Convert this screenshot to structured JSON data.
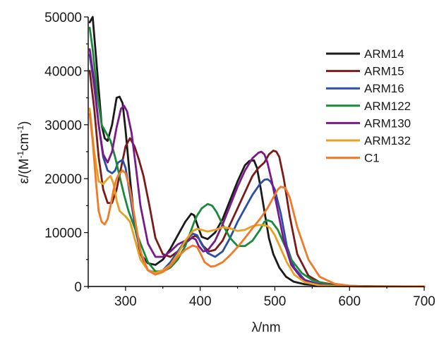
{
  "chart_data": {
    "type": "line",
    "title": "",
    "xlabel": "λ/nm",
    "ylabel_parts": {
      "pre": "ε/(M",
      "sup1": "-1",
      "mid": "cm",
      "sup2": "-1",
      "post": ")"
    },
    "xlim": [
      250,
      700
    ],
    "ylim": [
      0,
      50000
    ],
    "xticks": [
      300,
      400,
      500,
      600,
      700
    ],
    "yticks": [
      0,
      10000,
      20000,
      30000,
      40000,
      50000
    ],
    "xtick_labels": [
      "300",
      "400",
      "500",
      "600",
      "700"
    ],
    "ytick_labels": [
      "0",
      "10000",
      "20000",
      "30000",
      "40000",
      "50000"
    ],
    "grid": false,
    "legend_position": "top-right",
    "series": [
      {
        "name": "ARM14",
        "color": "#1a1a1a",
        "x": [
          252,
          256,
          262,
          268,
          272,
          276,
          282,
          288,
          292,
          296,
          300,
          306,
          312,
          320,
          330,
          340,
          350,
          360,
          370,
          380,
          388,
          392,
          396,
          402,
          410,
          420,
          430,
          440,
          450,
          460,
          466,
          472,
          476,
          480,
          486,
          492,
          498,
          506,
          515,
          525,
          540,
          560,
          580,
          600,
          620,
          650,
          700
        ],
        "y": [
          49000,
          50000,
          40000,
          30000,
          27500,
          27000,
          30000,
          35000,
          35200,
          34000,
          29000,
          20000,
          12000,
          6000,
          4300,
          4000,
          5000,
          7000,
          9500,
          12000,
          13500,
          13200,
          11500,
          9200,
          8800,
          10000,
          12500,
          16000,
          19500,
          22500,
          23300,
          23400,
          22000,
          19000,
          14000,
          9000,
          6000,
          3500,
          1800,
          900,
          400,
          200,
          100,
          50,
          20,
          0,
          0
        ]
      },
      {
        "name": "ARM15",
        "color": "#7b1a1a",
        "x": [
          252,
          258,
          264,
          270,
          276,
          282,
          288,
          294,
          300,
          306,
          312,
          318,
          324,
          332,
          340,
          350,
          360,
          370,
          380,
          390,
          394,
          398,
          404,
          412,
          420,
          430,
          440,
          450,
          460,
          470,
          478,
          486,
          492,
          498,
          502,
          506,
          512,
          520,
          530,
          545,
          560,
          580,
          600,
          620,
          650,
          700
        ],
        "y": [
          40000,
          33000,
          24000,
          18000,
          15500,
          15500,
          18000,
          22000,
          26000,
          27500,
          26000,
          23500,
          20500,
          15000,
          9000,
          6000,
          5500,
          6500,
          8000,
          9200,
          9400,
          8900,
          7500,
          6500,
          6800,
          8500,
          11500,
          14500,
          17500,
          20500,
          22000,
          23000,
          24500,
          25200,
          25000,
          24000,
          20000,
          13000,
          6000,
          2000,
          800,
          300,
          100,
          50,
          20,
          0
        ]
      },
      {
        "name": "ARM16",
        "color": "#2a4fa8",
        "x": [
          252,
          258,
          264,
          270,
          276,
          282,
          286,
          290,
          296,
          300,
          306,
          314,
          322,
          330,
          340,
          350,
          360,
          370,
          380,
          390,
          396,
          402,
          410,
          420,
          430,
          440,
          450,
          460,
          470,
          480,
          486,
          490,
          494,
          500,
          508,
          516,
          526,
          540,
          560,
          580,
          600,
          620,
          650,
          700
        ],
        "y": [
          43000,
          37000,
          30000,
          24000,
          21500,
          21000,
          21500,
          23000,
          23500,
          22000,
          17000,
          10000,
          5500,
          3000,
          2600,
          3000,
          4500,
          6500,
          8500,
          9800,
          9500,
          7800,
          6200,
          5500,
          6500,
          9000,
          12000,
          14500,
          17000,
          19000,
          19800,
          19900,
          19500,
          18000,
          13500,
          7500,
          3500,
          1200,
          400,
          150,
          50,
          20,
          0,
          0
        ]
      },
      {
        "name": "ARM122",
        "color": "#1a8a3a",
        "x": [
          252,
          256,
          262,
          268,
          274,
          280,
          286,
          292,
          298,
          304,
          312,
          320,
          330,
          340,
          350,
          360,
          370,
          380,
          388,
          392,
          396,
          402,
          410,
          416,
          422,
          430,
          440,
          450,
          460,
          470,
          480,
          486,
          490,
          496,
          504,
          512,
          522,
          536,
          550,
          570,
          590,
          610,
          640,
          700
        ],
        "y": [
          48000,
          44000,
          36000,
          30000,
          28500,
          27000,
          24000,
          20500,
          17000,
          14000,
          11000,
          8000,
          4500,
          2800,
          2800,
          3500,
          5000,
          7500,
          10500,
          12000,
          13200,
          14500,
          15300,
          15000,
          13800,
          11500,
          9000,
          7500,
          7500,
          8500,
          10500,
          12000,
          12300,
          12000,
          10500,
          8000,
          5000,
          2500,
          1200,
          400,
          150,
          50,
          0,
          0
        ]
      },
      {
        "name": "ARM130",
        "color": "#7a1a8a",
        "x": [
          252,
          258,
          264,
          270,
          276,
          282,
          288,
          294,
          298,
          302,
          308,
          314,
          320,
          330,
          340,
          350,
          360,
          370,
          380,
          390,
          394,
          398,
          404,
          410,
          420,
          430,
          440,
          450,
          460,
          470,
          478,
          482,
          486,
          490,
          496,
          504,
          512,
          522,
          536,
          550,
          570,
          590,
          610,
          640,
          700
        ],
        "y": [
          44000,
          38000,
          30000,
          24500,
          23000,
          25000,
          29500,
          33000,
          33500,
          32500,
          28500,
          22000,
          15000,
          8000,
          5500,
          5500,
          6500,
          7800,
          8500,
          9000,
          8700,
          7500,
          6500,
          6700,
          8500,
          11500,
          15000,
          18500,
          21500,
          23800,
          24800,
          25000,
          24500,
          23000,
          19500,
          14000,
          8500,
          4000,
          1500,
          600,
          200,
          80,
          20,
          0,
          0
        ]
      },
      {
        "name": "ARM132",
        "color": "#e8a020",
        "x": [
          252,
          258,
          264,
          270,
          276,
          280,
          284,
          288,
          292,
          296,
          300,
          306,
          312,
          320,
          330,
          340,
          350,
          360,
          370,
          380,
          390,
          396,
          402,
          410,
          420,
          430,
          440,
          450,
          460,
          470,
          478,
          484,
          490,
          494,
          500,
          508,
          516,
          526,
          540,
          560,
          580,
          600,
          620,
          650,
          700
        ],
        "y": [
          33000,
          25000,
          19500,
          19000,
          20000,
          20500,
          19000,
          16000,
          14000,
          13500,
          13000,
          12000,
          9000,
          5000,
          3000,
          2500,
          3000,
          4000,
          6000,
          8500,
          10300,
          10700,
          10500,
          10200,
          10500,
          11000,
          10800,
          10300,
          10500,
          11200,
          11400,
          11400,
          11200,
          10800,
          9500,
          7000,
          4500,
          2200,
          800,
          200,
          80,
          30,
          10,
          0,
          0
        ]
      },
      {
        "name": "C1",
        "color": "#f07a28",
        "x": [
          252,
          256,
          260,
          264,
          268,
          272,
          276,
          280,
          284,
          288,
          292,
          296,
          300,
          306,
          312,
          320,
          330,
          340,
          350,
          360,
          370,
          380,
          390,
          396,
          400,
          406,
          414,
          420,
          430,
          440,
          450,
          460,
          470,
          480,
          490,
          498,
          504,
          508,
          514,
          520,
          530,
          545,
          560,
          580,
          600,
          620,
          650,
          700
        ],
        "y": [
          32000,
          27000,
          20000,
          14000,
          12000,
          11500,
          12500,
          15000,
          18000,
          20000,
          21000,
          21500,
          21000,
          18000,
          13000,
          6500,
          3000,
          2200,
          2700,
          3800,
          5500,
          6800,
          7600,
          7300,
          6200,
          4500,
          3700,
          3800,
          4500,
          5800,
          7300,
          9000,
          10800,
          12500,
          14500,
          16500,
          18000,
          18500,
          18300,
          16500,
          11000,
          5000,
          1800,
          500,
          150,
          50,
          10,
          0
        ]
      }
    ]
  }
}
